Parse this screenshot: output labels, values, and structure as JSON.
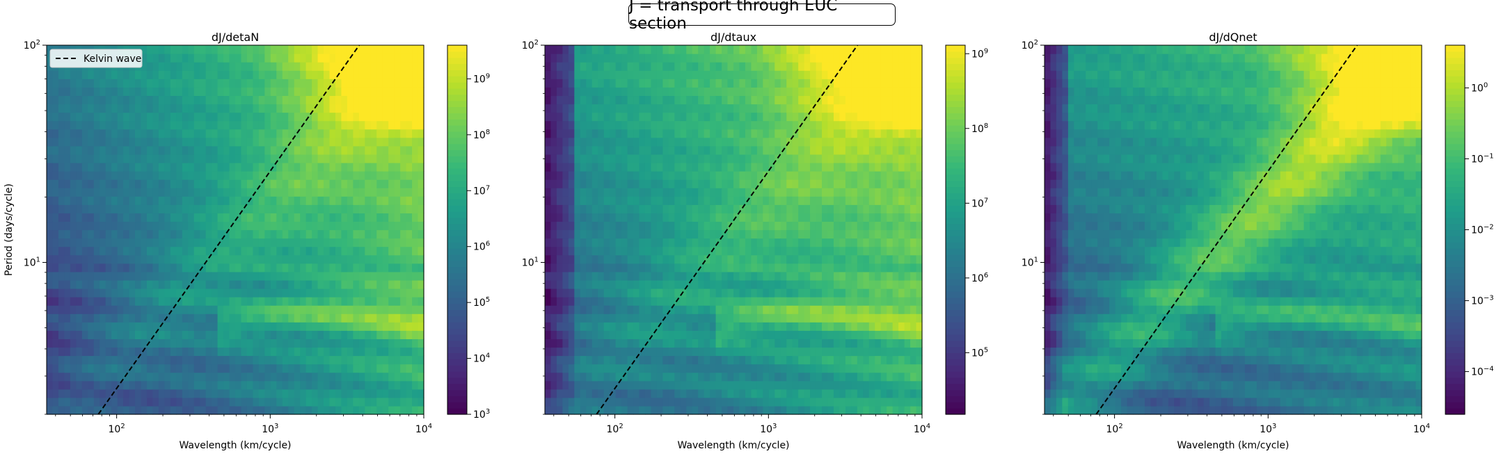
{
  "figure": {
    "suptitle": "J = transport through EUC section"
  },
  "chart_data": [
    {
      "type": "heatmap",
      "title": "dJ/detaN",
      "xlabel": "Wavelength (km/cycle)",
      "ylabel": "Period (days/cycle)",
      "xscale": "log",
      "yscale": "log",
      "xlim": [
        35,
        10000
      ],
      "ylim": [
        2,
        100
      ],
      "xticks": [
        {
          "value": 100,
          "base": "10",
          "exp": "2"
        },
        {
          "value": 1000,
          "base": "10",
          "exp": "3"
        },
        {
          "value": 10000,
          "base": "10",
          "exp": "4"
        }
      ],
      "yticks": [
        {
          "value": 10,
          "base": "10",
          "exp": "1"
        },
        {
          "value": 100,
          "base": "10",
          "exp": "2"
        }
      ],
      "colorbar": {
        "scale": "log",
        "range": [
          1000,
          4000000000
        ],
        "ticks": [
          {
            "value": 1000,
            "base": "10",
            "exp": "3"
          },
          {
            "value": 10000,
            "base": "10",
            "exp": "4"
          },
          {
            "value": 100000,
            "base": "10",
            "exp": "5"
          },
          {
            "value": 1000000,
            "base": "10",
            "exp": "6"
          },
          {
            "value": 10000000,
            "base": "10",
            "exp": "7"
          },
          {
            "value": 100000000,
            "base": "10",
            "exp": "8"
          },
          {
            "value": 1000000000,
            "base": "10",
            "exp": "9"
          }
        ]
      },
      "colormap": "viridis",
      "overlay": {
        "name": "Kelvin wave",
        "style": "dashed",
        "color": "#000000",
        "x": [
          76,
          3800
        ],
        "y": [
          2,
          100
        ]
      },
      "legend": {
        "location": "upper-left",
        "entries": [
          "Kelvin wave"
        ]
      }
    },
    {
      "type": "heatmap",
      "title": "dJ/dtaux",
      "xlabel": "Wavelength (km/cycle)",
      "ylabel": "",
      "xscale": "log",
      "yscale": "log",
      "xlim": [
        35,
        10000
      ],
      "ylim": [
        2,
        100
      ],
      "xticks": [
        {
          "value": 100,
          "base": "10",
          "exp": "2"
        },
        {
          "value": 1000,
          "base": "10",
          "exp": "3"
        },
        {
          "value": 10000,
          "base": "10",
          "exp": "4"
        }
      ],
      "yticks": [
        {
          "value": 10,
          "base": "10",
          "exp": "1"
        },
        {
          "value": 100,
          "base": "10",
          "exp": "2"
        }
      ],
      "colorbar": {
        "scale": "log",
        "range": [
          15000,
          1300000000
        ],
        "ticks": [
          {
            "value": 100000,
            "base": "10",
            "exp": "5"
          },
          {
            "value": 1000000,
            "base": "10",
            "exp": "6"
          },
          {
            "value": 10000000,
            "base": "10",
            "exp": "7"
          },
          {
            "value": 100000000,
            "base": "10",
            "exp": "8"
          },
          {
            "value": 1000000000,
            "base": "10",
            "exp": "9"
          }
        ]
      },
      "colormap": "viridis",
      "overlay": {
        "name": "Kelvin wave",
        "style": "dashed",
        "color": "#000000",
        "x": [
          76,
          3800
        ],
        "y": [
          2,
          100
        ]
      }
    },
    {
      "type": "heatmap",
      "title": "dJ/dQnet",
      "xlabel": "Wavelength (km/cycle)",
      "ylabel": "",
      "xscale": "log",
      "yscale": "log",
      "xlim": [
        35,
        10000
      ],
      "ylim": [
        2,
        100
      ],
      "xticks": [
        {
          "value": 100,
          "base": "10",
          "exp": "2"
        },
        {
          "value": 1000,
          "base": "10",
          "exp": "3"
        },
        {
          "value": 10000,
          "base": "10",
          "exp": "4"
        }
      ],
      "yticks": [
        {
          "value": 10,
          "base": "10",
          "exp": "1"
        },
        {
          "value": 100,
          "base": "10",
          "exp": "2"
        }
      ],
      "colorbar": {
        "scale": "log",
        "range": [
          2.5e-05,
          4
        ],
        "ticks": [
          {
            "value": 0.0001,
            "base": "10",
            "exp": "−4"
          },
          {
            "value": 0.001,
            "base": "10",
            "exp": "−3"
          },
          {
            "value": 0.01,
            "base": "10",
            "exp": "−2"
          },
          {
            "value": 0.1,
            "base": "10",
            "exp": "−1"
          },
          {
            "value": 1,
            "base": "10",
            "exp": "0"
          }
        ]
      },
      "colormap": "viridis",
      "overlay": {
        "name": "Kelvin wave",
        "style": "dashed",
        "color": "#000000",
        "x": [
          76,
          3800
        ],
        "y": [
          2,
          100
        ]
      }
    }
  ]
}
